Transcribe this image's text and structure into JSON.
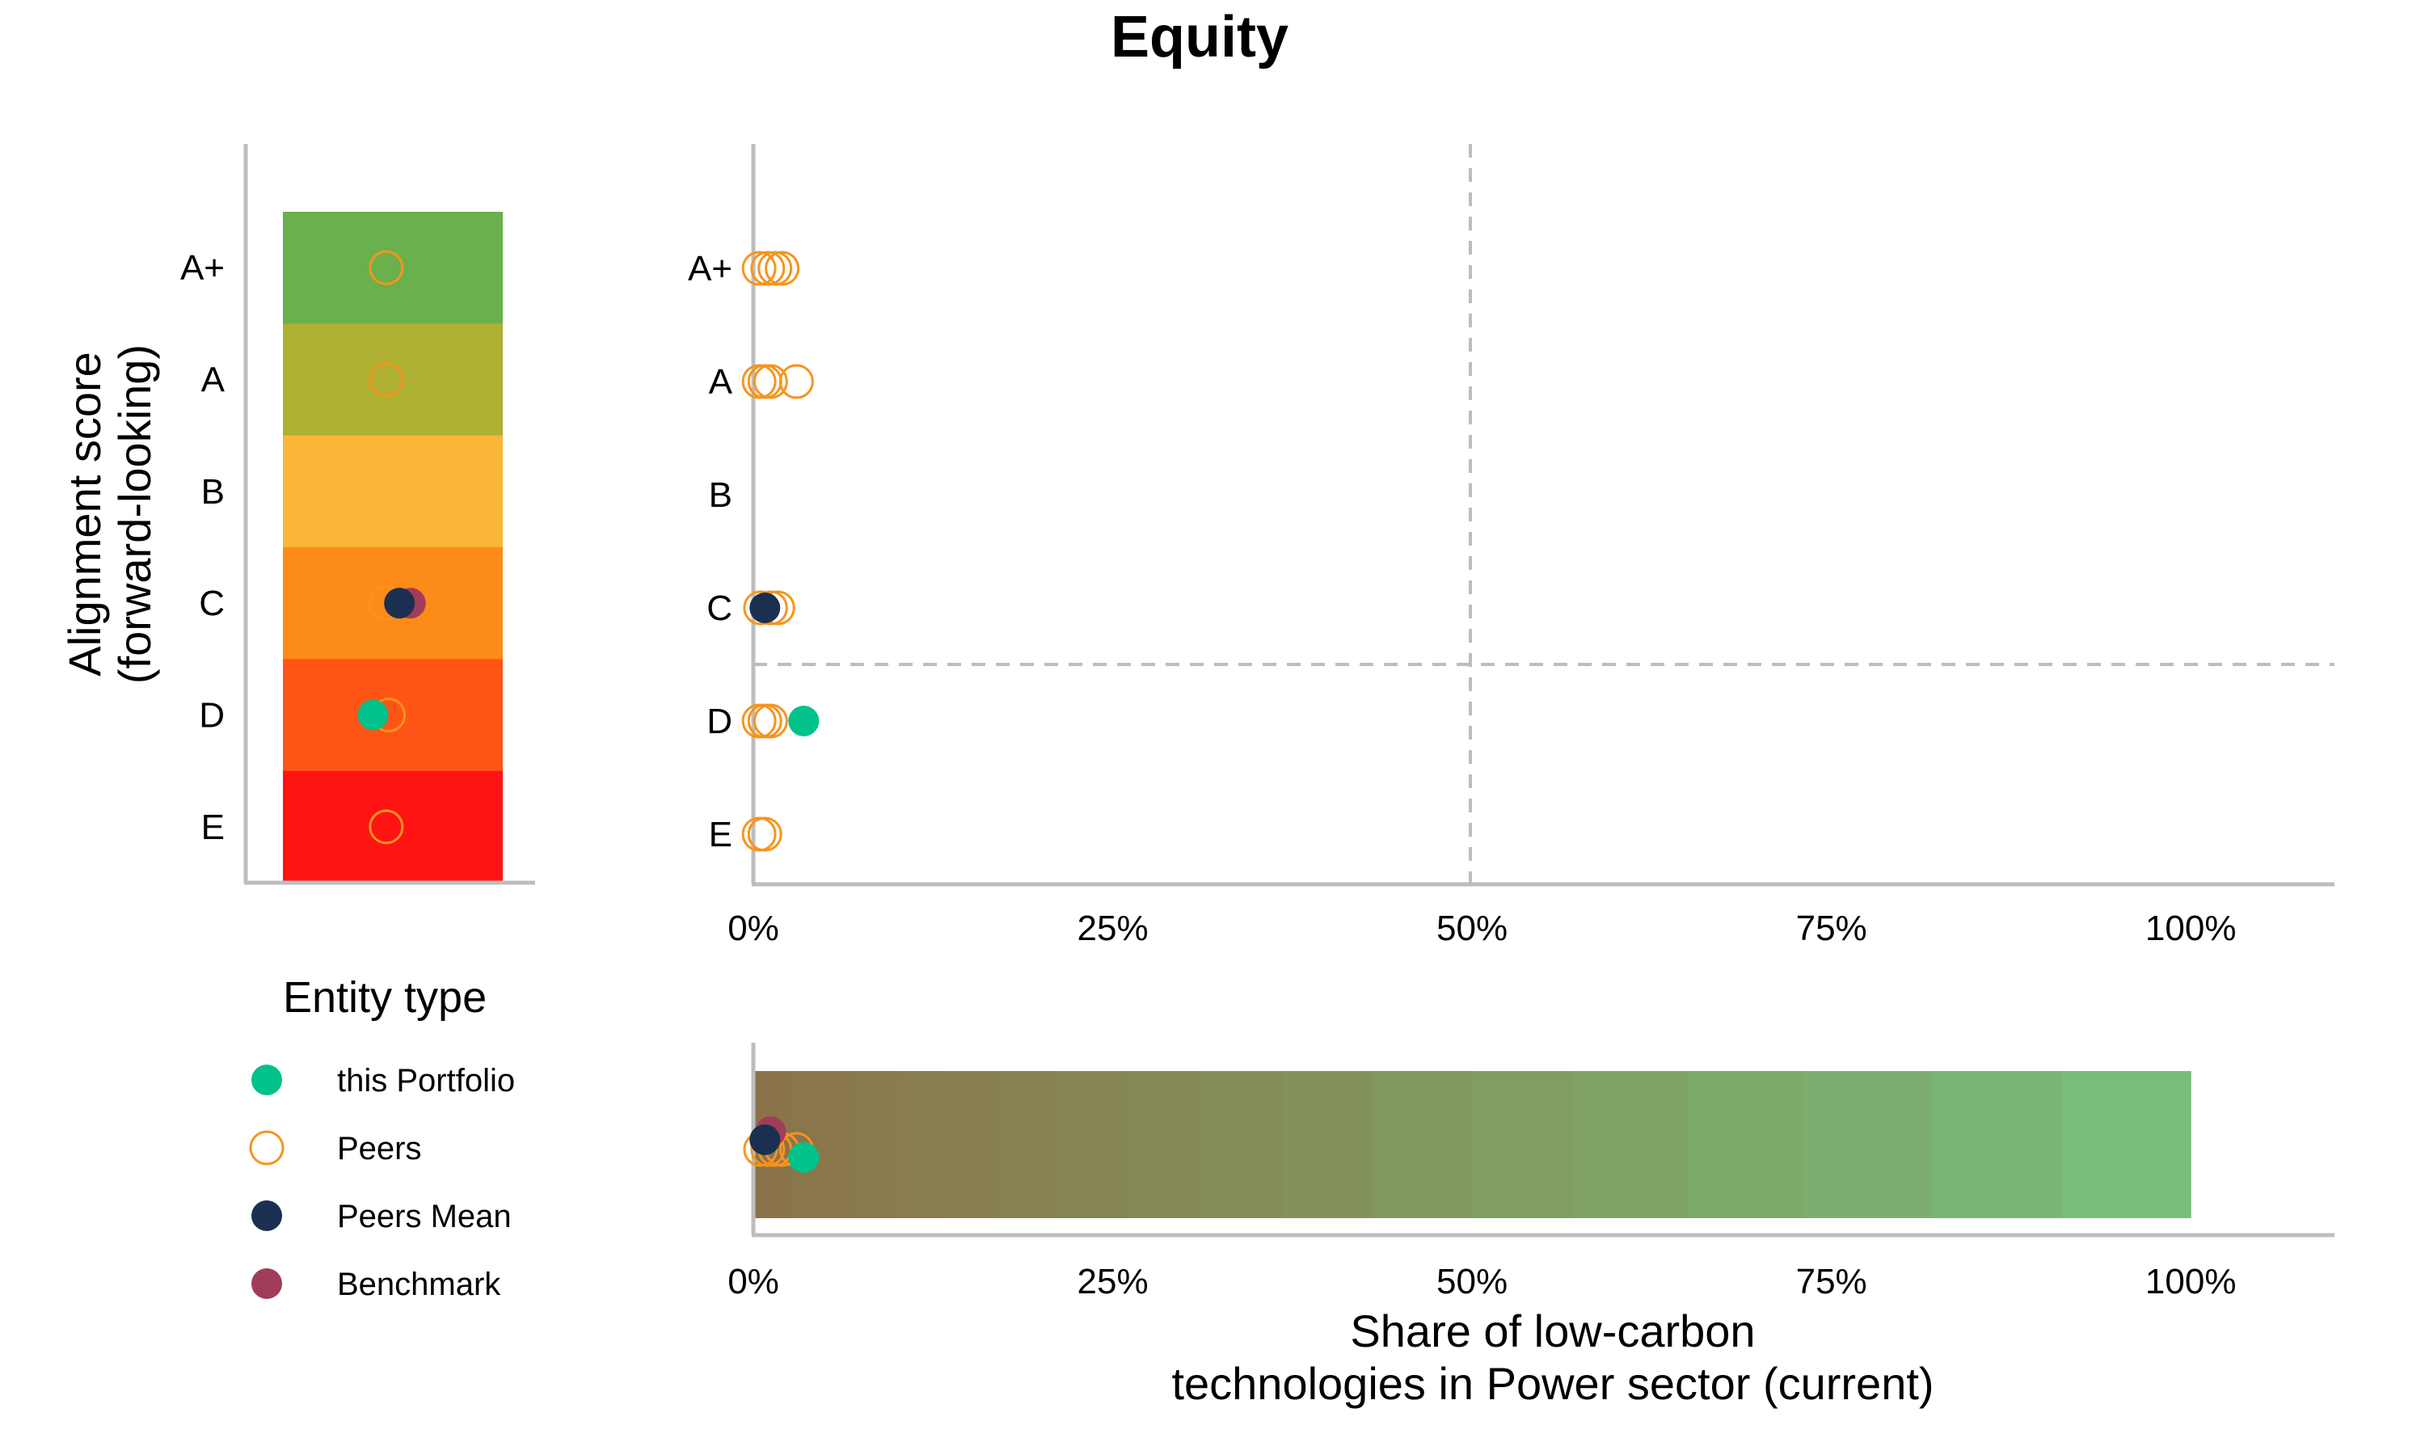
{
  "chart_data": {
    "type": "scatter",
    "title": "Equity",
    "score_labels": [
      "A+",
      "A",
      "B",
      "C",
      "D",
      "E"
    ],
    "score_colors": [
      "#6ab04c",
      "#adb033",
      "#f9b637",
      "#fd8b18",
      "#fe5516",
      "#ff1414"
    ],
    "left_panel": {
      "ylabel_line1": "Alignment score",
      "ylabel_line2": "(forward-looking)",
      "points": [
        {
          "entity": "Peers",
          "score": "A+",
          "jitter": 0.47
        },
        {
          "entity": "Peers",
          "score": "A",
          "jitter": 0.47
        },
        {
          "entity": "Peers",
          "score": "C",
          "jitter": 0.47
        },
        {
          "entity": "Peers",
          "score": "D",
          "jitter": 0.48
        },
        {
          "entity": "Peers",
          "score": "E",
          "jitter": 0.47
        },
        {
          "entity": "Benchmark",
          "score": "C",
          "jitter": 0.58
        },
        {
          "entity": "Peers Mean",
          "score": "C",
          "jitter": 0.53
        },
        {
          "entity": "this Portfolio",
          "score": "D",
          "jitter": 0.41
        }
      ]
    },
    "main_panel": {
      "x_ticks": [
        "0%",
        "25%",
        "50%",
        "75%",
        "100%"
      ],
      "xlim": [
        0,
        1.1
      ],
      "threshold_x": 0.5,
      "threshold_between": [
        "C",
        "D"
      ],
      "points": [
        {
          "entity": "Peers",
          "x": 0.004,
          "score": "A+"
        },
        {
          "entity": "Peers",
          "x": 0.01,
          "score": "A+"
        },
        {
          "entity": "Peers",
          "x": 0.015,
          "score": "A+"
        },
        {
          "entity": "Peers",
          "x": 0.02,
          "score": "A+"
        },
        {
          "entity": "Peers",
          "x": 0.004,
          "score": "A"
        },
        {
          "entity": "Peers",
          "x": 0.008,
          "score": "A"
        },
        {
          "entity": "Peers",
          "x": 0.012,
          "score": "A"
        },
        {
          "entity": "Peers",
          "x": 0.03,
          "score": "A"
        },
        {
          "entity": "Peers",
          "x": 0.005,
          "score": "C"
        },
        {
          "entity": "Peers",
          "x": 0.012,
          "score": "C"
        },
        {
          "entity": "Peers",
          "x": 0.017,
          "score": "C"
        },
        {
          "entity": "Peers Mean",
          "x": 0.008,
          "score": "C"
        },
        {
          "entity": "Peers",
          "x": 0.004,
          "score": "D"
        },
        {
          "entity": "Peers",
          "x": 0.008,
          "score": "D"
        },
        {
          "entity": "Peers",
          "x": 0.012,
          "score": "D"
        },
        {
          "entity": "this Portfolio",
          "x": 0.035,
          "score": "D"
        },
        {
          "entity": "Peers",
          "x": 0.004,
          "score": "E"
        },
        {
          "entity": "Peers",
          "x": 0.008,
          "score": "E"
        }
      ]
    },
    "bottom_panel": {
      "x_ticks": [
        "0%",
        "25%",
        "50%",
        "75%",
        "100%"
      ],
      "xlim": [
        0,
        1.1
      ],
      "xlabel_line1": "Share of low-carbon",
      "xlabel_line2": "technologies in Power sector (current)",
      "gradient_from": "#8b7349",
      "gradient_to": "#77c17a",
      "points": [
        {
          "entity": "Peers",
          "x": 0.005
        },
        {
          "entity": "Peers",
          "x": 0.01
        },
        {
          "entity": "Peers",
          "x": 0.015
        },
        {
          "entity": "Peers",
          "x": 0.02
        },
        {
          "entity": "Peers",
          "x": 0.03
        },
        {
          "entity": "Benchmark",
          "x": 0.012
        },
        {
          "entity": "Peers Mean",
          "x": 0.008
        },
        {
          "entity": "this Portfolio",
          "x": 0.035
        }
      ]
    },
    "legend": {
      "title": "Entity type",
      "position": "bottom-left",
      "items": [
        {
          "label": "this Portfolio",
          "color": "#00c28a",
          "filled": true
        },
        {
          "label": "Peers",
          "color": "#f7941d",
          "filled": false
        },
        {
          "label": "Peers Mean",
          "color": "#1b3050",
          "filled": true
        },
        {
          "label": "Benchmark",
          "color": "#a13c5a",
          "filled": true
        }
      ]
    }
  }
}
